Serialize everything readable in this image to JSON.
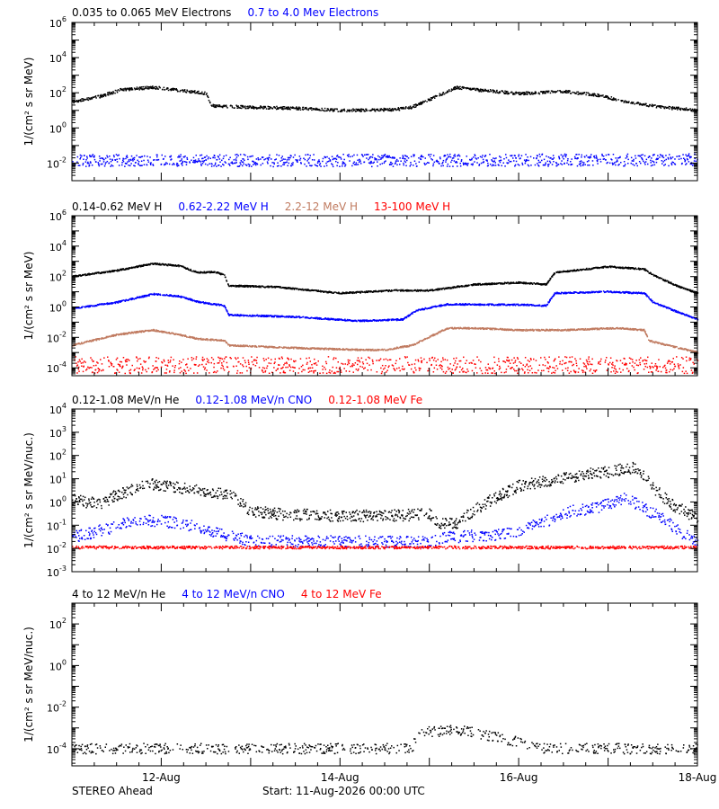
{
  "footer": {
    "spacecraft": "STEREO Ahead",
    "start": "Start: 11-Aug-2026 00:00 UTC"
  },
  "x_axis": {
    "range_days": [
      0,
      7
    ],
    "ticks": [
      {
        "day": 1,
        "label": "12-Aug"
      },
      {
        "day": 3,
        "label": "14-Aug"
      },
      {
        "day": 5,
        "label": "16-Aug"
      },
      {
        "day": 7,
        "label": "18-Aug"
      }
    ]
  },
  "colors": {
    "black": "#000000",
    "blue": "#0000ff",
    "tan": "#c07b60",
    "red": "#ff0000"
  },
  "chart_data": [
    {
      "type": "scatter",
      "scale": "log",
      "ylabel": "1/(cm² s sr MeV)",
      "ylim": [
        0.001,
        1000000
      ],
      "yticks": [
        {
          "v": 1000000,
          "m": "10",
          "e": "6"
        },
        {
          "v": 10000,
          "m": "10",
          "e": "4"
        },
        {
          "v": 100,
          "m": "10",
          "e": "2"
        },
        {
          "v": 1,
          "m": "10",
          "e": "0"
        },
        {
          "v": 0.01,
          "m": "10",
          "e": "-2"
        }
      ],
      "series": [
        {
          "name": "0.035 to 0.065 MeV Electrons",
          "color": "#000000",
          "scatter": 0.08,
          "density": 0.55,
          "points": [
            [
              0,
              30
            ],
            [
              0.3,
              60
            ],
            [
              0.55,
              150
            ],
            [
              0.9,
              200
            ],
            [
              1.2,
              140
            ],
            [
              1.5,
              90
            ],
            [
              1.55,
              18
            ],
            [
              2.0,
              15
            ],
            [
              2.5,
              13
            ],
            [
              3.0,
              10
            ],
            [
              3.6,
              11
            ],
            [
              3.8,
              15
            ],
            [
              4.2,
              120
            ],
            [
              4.3,
              200
            ],
            [
              4.5,
              150
            ],
            [
              5.0,
              90
            ],
            [
              5.5,
              120
            ],
            [
              5.9,
              70
            ],
            [
              6.2,
              30
            ],
            [
              6.6,
              15
            ],
            [
              7.0,
              10
            ]
          ]
        },
        {
          "name": "0.7 to 4.0 Mev Electrons",
          "color": "#0000ff",
          "scatter": 0.35,
          "density": 0.55,
          "points": [
            [
              0,
              0.014
            ],
            [
              3.5,
              0.014
            ],
            [
              7.0,
              0.015
            ]
          ]
        }
      ]
    },
    {
      "type": "scatter",
      "scale": "log",
      "ylabel": "1/(cm² s sr MeV)",
      "ylim": [
        3e-05,
        1000000
      ],
      "yticks": [
        {
          "v": 1000000,
          "m": "10",
          "e": "6"
        },
        {
          "v": 10000,
          "m": "10",
          "e": "4"
        },
        {
          "v": 100,
          "m": "10",
          "e": "2"
        },
        {
          "v": 1,
          "m": "10",
          "e": "0"
        },
        {
          "v": 0.01,
          "m": "10",
          "e": "-2"
        },
        {
          "v": 0.0001,
          "m": "10",
          "e": "-4"
        }
      ],
      "series": [
        {
          "name": "0.14-0.62 MeV H",
          "color": "#000000",
          "scatter": 0.05,
          "density": 0.7,
          "points": [
            [
              0,
              100
            ],
            [
              0.5,
              250
            ],
            [
              0.9,
              700
            ],
            [
              1.2,
              500
            ],
            [
              1.4,
              180
            ],
            [
              1.6,
              200
            ],
            [
              1.7,
              120
            ],
            [
              1.75,
              25
            ],
            [
              2.3,
              20
            ],
            [
              3.0,
              8
            ],
            [
              3.6,
              12
            ],
            [
              4.0,
              12
            ],
            [
              4.5,
              30
            ],
            [
              5.0,
              40
            ],
            [
              5.3,
              30
            ],
            [
              5.4,
              180
            ],
            [
              6.0,
              450
            ],
            [
              6.4,
              300
            ],
            [
              6.5,
              120
            ],
            [
              6.8,
              20
            ],
            [
              7.0,
              8
            ]
          ]
        },
        {
          "name": "0.62-2.22 MeV H",
          "color": "#0000ff",
          "scatter": 0.05,
          "density": 0.7,
          "points": [
            [
              0,
              0.8
            ],
            [
              0.5,
              2
            ],
            [
              0.9,
              7
            ],
            [
              1.2,
              5
            ],
            [
              1.4,
              2.2
            ],
            [
              1.7,
              1.2
            ],
            [
              1.75,
              0.3
            ],
            [
              2.5,
              0.22
            ],
            [
              3.2,
              0.12
            ],
            [
              3.7,
              0.15
            ],
            [
              3.85,
              0.6
            ],
            [
              4.2,
              1.5
            ],
            [
              5.0,
              1.4
            ],
            [
              5.3,
              1.2
            ],
            [
              5.4,
              8
            ],
            [
              6.0,
              10
            ],
            [
              6.4,
              8
            ],
            [
              6.5,
              2
            ],
            [
              6.8,
              0.4
            ],
            [
              7.0,
              0.15
            ]
          ]
        },
        {
          "name": "2.2-12 MeV H",
          "color": "#c07b60",
          "scatter": 0.05,
          "density": 0.7,
          "points": [
            [
              0,
              0.003
            ],
            [
              0.5,
              0.015
            ],
            [
              0.9,
              0.03
            ],
            [
              1.2,
              0.015
            ],
            [
              1.4,
              0.008
            ],
            [
              1.7,
              0.006
            ],
            [
              1.75,
              0.003
            ],
            [
              2.5,
              0.002
            ],
            [
              3.2,
              0.0015
            ],
            [
              3.5,
              0.0015
            ],
            [
              3.8,
              0.003
            ],
            [
              4.2,
              0.04
            ],
            [
              4.5,
              0.04
            ],
            [
              5.0,
              0.03
            ],
            [
              5.5,
              0.03
            ],
            [
              6.1,
              0.04
            ],
            [
              6.4,
              0.03
            ],
            [
              6.45,
              0.006
            ],
            [
              7.0,
              0.001
            ]
          ]
        },
        {
          "name": "13-100 MeV H",
          "color": "#ff0000",
          "scatter": 0.55,
          "density": 0.45,
          "points": [
            [
              0,
              0.00015
            ],
            [
              7.0,
              0.00015
            ]
          ]
        }
      ]
    },
    {
      "type": "scatter",
      "scale": "log",
      "ylabel": "1/(cm² s sr MeV/nuc.)",
      "ylim": [
        0.001,
        10000
      ],
      "yticks": [
        {
          "v": 10000,
          "m": "10",
          "e": "4"
        },
        {
          "v": 1000,
          "m": "10",
          "e": "3"
        },
        {
          "v": 100,
          "m": "10",
          "e": "2"
        },
        {
          "v": 10,
          "m": "10",
          "e": "1"
        },
        {
          "v": 1,
          "m": "10",
          "e": "0"
        },
        {
          "v": 0.1,
          "m": "10",
          "e": "-1"
        },
        {
          "v": 0.01,
          "m": "10",
          "e": "-2"
        },
        {
          "v": 0.001,
          "m": "10",
          "e": "-3"
        }
      ],
      "series": [
        {
          "name": "0.12-1.08 MeV/n He",
          "color": "#000000",
          "scatter": 0.25,
          "density": 0.55,
          "points": [
            [
              0,
              1.2
            ],
            [
              0.3,
              0.8
            ],
            [
              0.5,
              2
            ],
            [
              0.9,
              6
            ],
            [
              1.2,
              4
            ],
            [
              1.5,
              3
            ],
            [
              1.8,
              1.8
            ],
            [
              2.0,
              0.4
            ],
            [
              2.3,
              0.3
            ],
            [
              3.0,
              0.25
            ],
            [
              3.5,
              0.25
            ],
            [
              4.0,
              0.3
            ],
            [
              4.1,
              0.12
            ],
            [
              4.3,
              0.12
            ],
            [
              4.6,
              0.8
            ],
            [
              5.0,
              5
            ],
            [
              5.3,
              8
            ],
            [
              5.5,
              10
            ],
            [
              5.7,
              15
            ],
            [
              6.0,
              20
            ],
            [
              6.3,
              30
            ],
            [
              6.5,
              4
            ],
            [
              6.7,
              0.8
            ],
            [
              7.0,
              0.2
            ]
          ]
        },
        {
          "name": "0.12-1.08 MeV/n CNO",
          "color": "#0000ff",
          "scatter": 0.25,
          "density": 0.45,
          "points": [
            [
              0,
              0.03
            ],
            [
              0.4,
              0.07
            ],
            [
              0.7,
              0.15
            ],
            [
              1.0,
              0.15
            ],
            [
              1.3,
              0.1
            ],
            [
              1.6,
              0.05
            ],
            [
              2.0,
              0.02
            ],
            [
              3.0,
              0.02
            ],
            [
              4.0,
              0.018
            ],
            [
              4.2,
              0.03
            ],
            [
              4.8,
              0.04
            ],
            [
              5.0,
              0.06
            ],
            [
              5.3,
              0.15
            ],
            [
              5.6,
              0.4
            ],
            [
              5.9,
              0.6
            ],
            [
              6.2,
              1.5
            ],
            [
              6.4,
              0.5
            ],
            [
              6.6,
              0.2
            ],
            [
              6.8,
              0.05
            ],
            [
              7.0,
              0.02
            ]
          ]
        },
        {
          "name": "0.12-1.08 MeV Fe",
          "color": "#ff0000",
          "scatter": 0.06,
          "density": 0.5,
          "points": [
            [
              0,
              0.011
            ],
            [
              7.0,
              0.011
            ]
          ]
        }
      ]
    },
    {
      "type": "scatter",
      "scale": "log",
      "ylabel": "1/(cm² s sr MeV/nuc.)",
      "ylim": [
        1.5e-05,
        1000
      ],
      "yticks": [
        {
          "v": 100,
          "m": "10",
          "e": "2"
        },
        {
          "v": 1,
          "m": "10",
          "e": "0"
        },
        {
          "v": 0.01,
          "m": "10",
          "e": "-2"
        },
        {
          "v": 0.0001,
          "m": "10",
          "e": "-4"
        }
      ],
      "series": [
        {
          "name": "4 to 12 MeV/n He",
          "color": "#000000",
          "scatter": 0.25,
          "density": 0.35,
          "points": [
            [
              0,
              0.0001
            ],
            [
              3.5,
              0.0001
            ],
            [
              3.8,
              0.00012
            ],
            [
              3.9,
              0.0006
            ],
            [
              4.3,
              0.0008
            ],
            [
              4.6,
              0.0005
            ],
            [
              4.8,
              0.0003
            ],
            [
              5.0,
              0.0002
            ],
            [
              5.2,
              0.0001
            ],
            [
              7.0,
              0.0001
            ]
          ]
        },
        {
          "name": "4 to 12 MeV/n CNO",
          "color": "#0000ff",
          "scatter": 0.1,
          "density": 0.05,
          "points": [
            [
              3.8,
              1e-05
            ],
            [
              4.6,
              1e-05
            ]
          ]
        },
        {
          "name": "4 to 12 MeV Fe",
          "color": "#ff0000",
          "scatter": 0.1,
          "density": 0.0,
          "points": [
            [
              0,
              1e-05
            ],
            [
              7.0,
              1e-05
            ]
          ]
        }
      ]
    }
  ]
}
